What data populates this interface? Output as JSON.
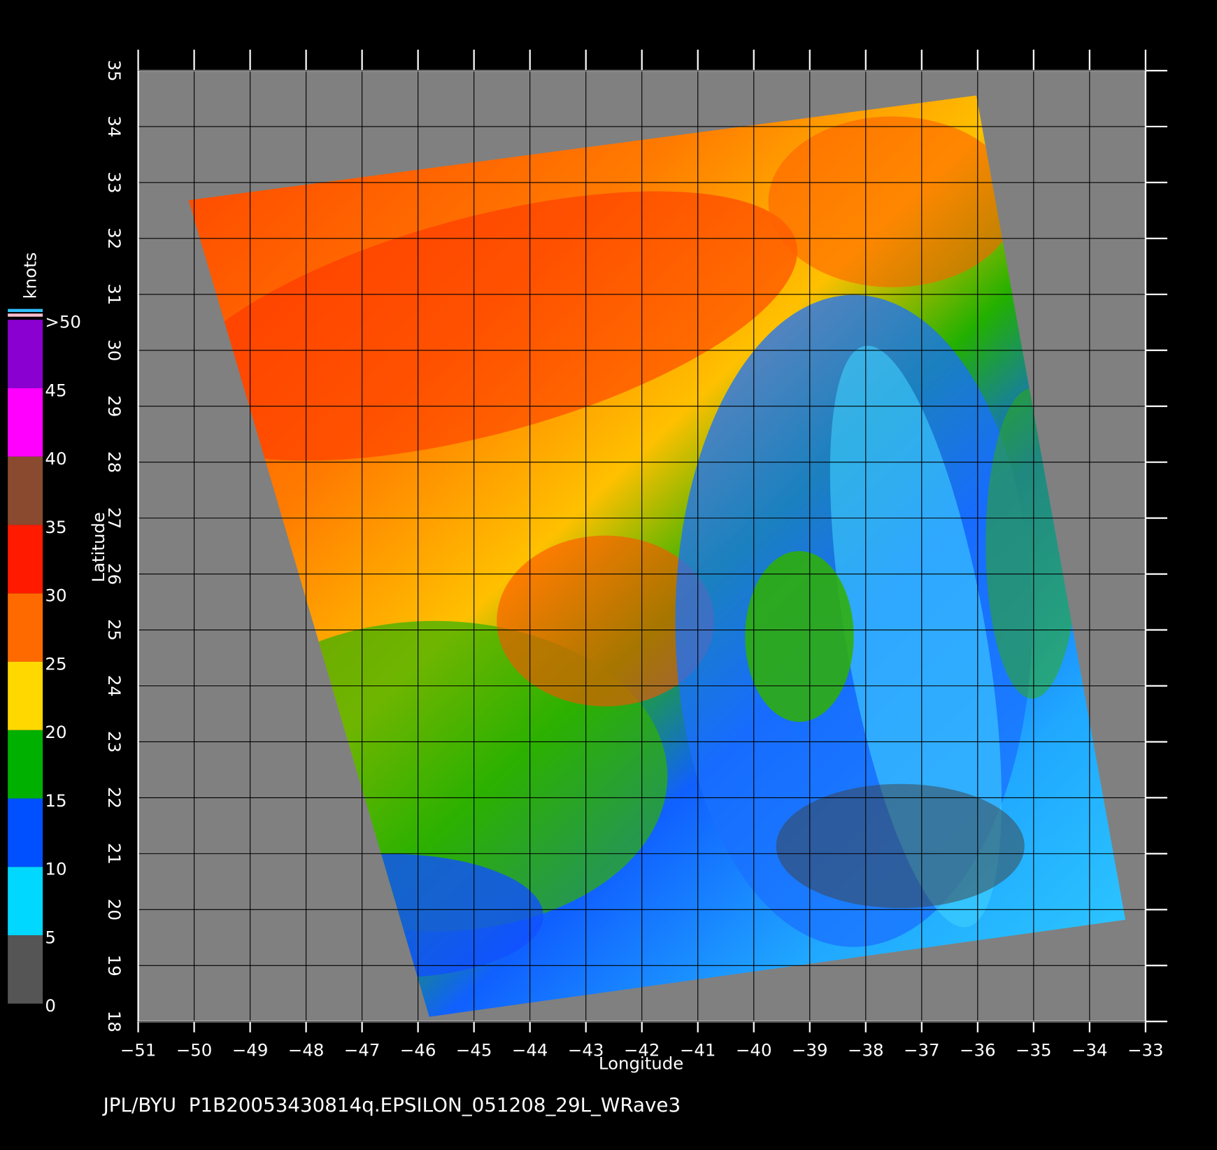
{
  "chart_data": {
    "type": "map",
    "title": "JPL/BYU  P1B20053430814q.EPSILON_051208_29L_WRave3",
    "x_label": "Longitude",
    "y_label": "Latitude",
    "xlim": [
      -51,
      -33
    ],
    "ylim": [
      18,
      35
    ],
    "xticks": [
      {
        "value": -51,
        "label": "−51"
      },
      {
        "value": -50,
        "label": "−50"
      },
      {
        "value": -49,
        "label": "−49"
      },
      {
        "value": -48,
        "label": "−48"
      },
      {
        "value": -47,
        "label": "−47"
      },
      {
        "value": -46,
        "label": "−46"
      },
      {
        "value": -45,
        "label": "−45"
      },
      {
        "value": -44,
        "label": "−44"
      },
      {
        "value": -43,
        "label": "−43"
      },
      {
        "value": -42,
        "label": "−42"
      },
      {
        "value": -41,
        "label": "−41"
      },
      {
        "value": -40,
        "label": "−40"
      },
      {
        "value": -39,
        "label": "−39"
      },
      {
        "value": -38,
        "label": "−38"
      },
      {
        "value": -37,
        "label": "−37"
      },
      {
        "value": -36,
        "label": "−36"
      },
      {
        "value": -35,
        "label": "−35"
      },
      {
        "value": -34,
        "label": "−34"
      },
      {
        "value": -33,
        "label": "−33"
      }
    ],
    "yticks": [
      18,
      19,
      20,
      21,
      22,
      23,
      24,
      25,
      26,
      27,
      28,
      29,
      30,
      31,
      32,
      33,
      34,
      35
    ],
    "grid": true,
    "colorbar": {
      "label": "knots",
      "lim": [
        0,
        50
      ],
      "ticks": [
        0,
        5,
        10,
        15,
        20,
        25,
        30,
        35,
        40,
        45,
        {
          "value": 50,
          "label": ">50"
        }
      ],
      "colors": [
        "#555555",
        "#00d8ff",
        "#0050ff",
        "#00b000",
        "#ffd800",
        "#ff6a00",
        "#ff1a00",
        "#8a4a30",
        "#ff00ff",
        "#8a00d0"
      ]
    }
  }
}
